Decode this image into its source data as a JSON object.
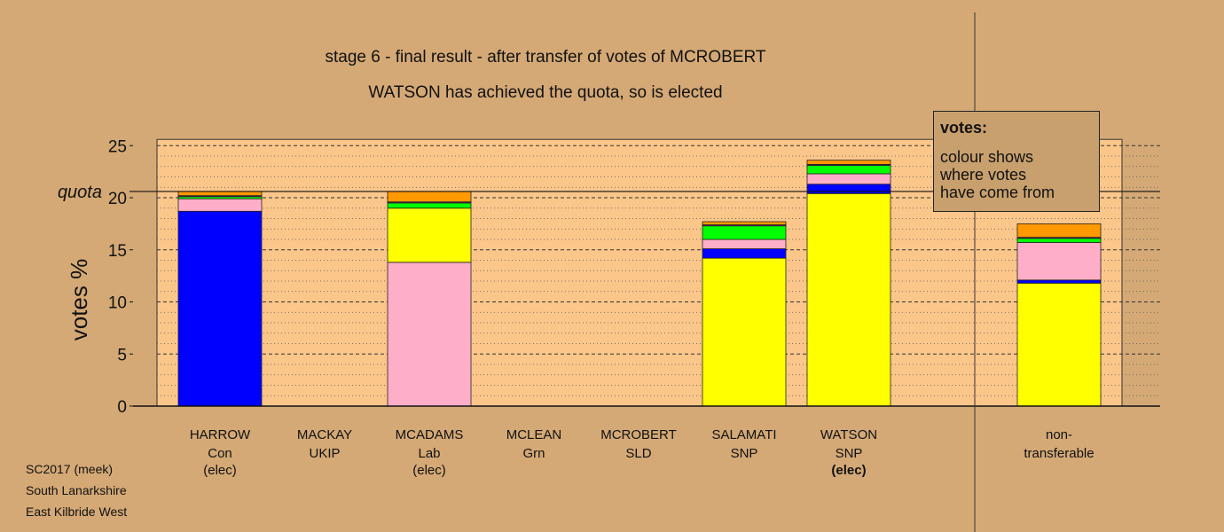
{
  "title": "stage 6 - final result - after transfer of votes of MCROBERT",
  "subtitle": "WATSON has achieved the quota, so is elected",
  "legend": {
    "heading": "votes:",
    "text": "colour shows\nwhere votes\nhave come from"
  },
  "footer": [
    "SC2017 (meek)",
    "South Lanarkshire",
    "East Kilbride West"
  ],
  "colors": {
    "background": "#d4a976",
    "plot_background": "#fbc68a",
    "Con": "#0000ff",
    "Lab": "#ffaec9",
    "SNP": "#ffff00",
    "Grn": "#00ff00",
    "SLD": "#ff9900",
    "UKIP": "#7f007f"
  },
  "chart_data": {
    "type": "bar",
    "stacked": true,
    "ylabel": "votes %",
    "ylim": [
      0,
      25
    ],
    "yticks": [
      0,
      5,
      10,
      15,
      20,
      25
    ],
    "quota": 20.6,
    "quota_label": "quota",
    "grid": "dashed major, dotted minor",
    "categories": [
      {
        "name": "HARROW",
        "party": "Con",
        "note": "(elec)",
        "note_bold": false
      },
      {
        "name": "MACKAY",
        "party": "UKIP",
        "note": "",
        "note_bold": false
      },
      {
        "name": "MCADAMS",
        "party": "Lab",
        "note": "(elec)",
        "note_bold": false
      },
      {
        "name": "MCLEAN",
        "party": "Grn",
        "note": "",
        "note_bold": false
      },
      {
        "name": "MCROBERT",
        "party": "SLD",
        "note": "",
        "note_bold": false
      },
      {
        "name": "SALAMATI",
        "party": "SNP",
        "note": "",
        "note_bold": false
      },
      {
        "name": "WATSON",
        "party": "SNP",
        "note": "(elec)",
        "note_bold": true
      },
      {
        "name": "non-",
        "party": "transferable",
        "note": "",
        "note_bold": false
      }
    ],
    "series": [
      {
        "source": "Con",
        "values": [
          18.7,
          0,
          0,
          0,
          0,
          0,
          0,
          0
        ]
      },
      {
        "source": "Lab",
        "values": [
          1.2,
          0,
          13.8,
          0,
          0,
          0,
          0,
          0
        ]
      },
      {
        "source": "SNP",
        "values": [
          0,
          0,
          5.2,
          0,
          0,
          14.2,
          20.4,
          11.8
        ]
      },
      {
        "source": "Con2",
        "values": [
          0,
          0,
          0,
          0,
          0,
          0.9,
          0.9,
          0.3
        ]
      },
      {
        "source": "Lab2",
        "values": [
          0,
          0,
          0,
          0,
          0,
          0.9,
          1.0,
          3.6
        ]
      },
      {
        "source": "Grn",
        "values": [
          0.2,
          0,
          0.5,
          0,
          0,
          1.3,
          0.8,
          0.4
        ]
      },
      {
        "source": "UKIP",
        "values": [
          0.1,
          0,
          0.1,
          0,
          0,
          0.1,
          0.1,
          0.1
        ]
      },
      {
        "source": "SLD",
        "values": [
          0.4,
          0,
          1.0,
          0,
          0,
          0.3,
          0.4,
          1.3
        ]
      }
    ]
  }
}
